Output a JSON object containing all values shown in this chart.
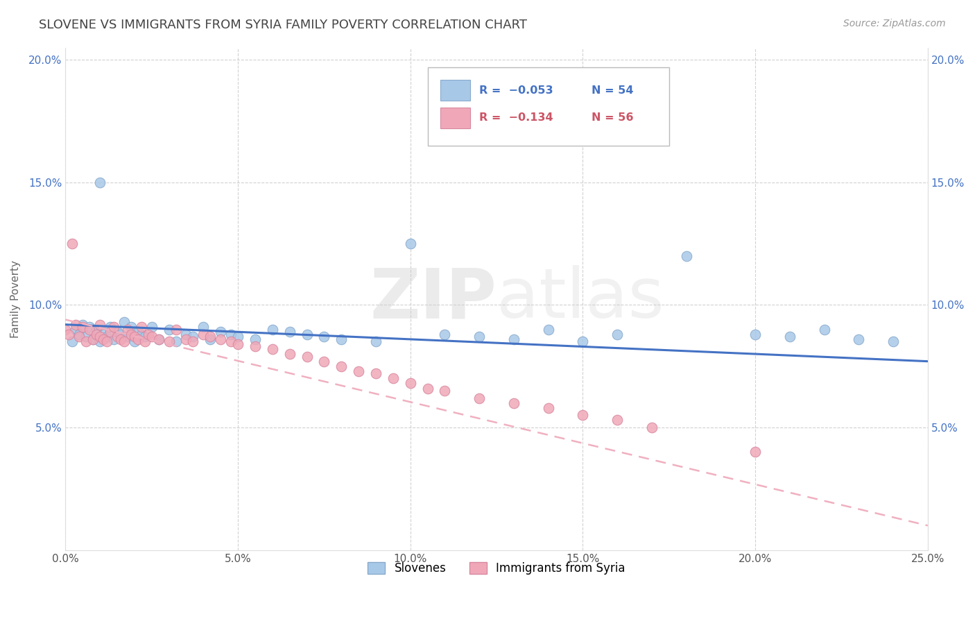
{
  "title": "SLOVENE VS IMMIGRANTS FROM SYRIA FAMILY POVERTY CORRELATION CHART",
  "source": "Source: ZipAtlas.com",
  "ylabel": "Family Poverty",
  "xlim": [
    0.0,
    0.25
  ],
  "ylim": [
    0.0,
    0.205
  ],
  "xtick_labels": [
    "0.0%",
    "5.0%",
    "10.0%",
    "15.0%",
    "20.0%",
    "25.0%"
  ],
  "xtick_vals": [
    0.0,
    0.05,
    0.1,
    0.15,
    0.2,
    0.25
  ],
  "ytick_labels": [
    "5.0%",
    "10.0%",
    "15.0%",
    "20.0%"
  ],
  "ytick_vals": [
    0.05,
    0.1,
    0.15,
    0.2
  ],
  "color_slovene": "#a8c8e8",
  "color_syria": "#f0a8b8",
  "color_line_slovene": "#4472c4",
  "color_line_syria": "#f0b0c0",
  "slovene_x": [
    0.002,
    0.003,
    0.004,
    0.005,
    0.006,
    0.007,
    0.008,
    0.009,
    0.01,
    0.01,
    0.011,
    0.012,
    0.013,
    0.014,
    0.015,
    0.016,
    0.017,
    0.018,
    0.019,
    0.02,
    0.021,
    0.022,
    0.023,
    0.025,
    0.027,
    0.03,
    0.032,
    0.035,
    0.037,
    0.04,
    0.042,
    0.045,
    0.048,
    0.05,
    0.055,
    0.06,
    0.065,
    0.07,
    0.075,
    0.08,
    0.09,
    0.1,
    0.11,
    0.12,
    0.13,
    0.14,
    0.15,
    0.16,
    0.18,
    0.2,
    0.21,
    0.22,
    0.23,
    0.24
  ],
  "slovene_y": [
    0.085,
    0.09,
    0.088,
    0.092,
    0.087,
    0.091,
    0.086,
    0.09,
    0.085,
    0.15,
    0.088,
    0.087,
    0.091,
    0.086,
    0.089,
    0.088,
    0.093,
    0.087,
    0.091,
    0.085,
    0.089,
    0.088,
    0.087,
    0.091,
    0.086,
    0.09,
    0.085,
    0.088,
    0.087,
    0.091,
    0.086,
    0.089,
    0.088,
    0.087,
    0.086,
    0.09,
    0.089,
    0.088,
    0.087,
    0.086,
    0.085,
    0.125,
    0.088,
    0.087,
    0.086,
    0.09,
    0.085,
    0.088,
    0.12,
    0.088,
    0.087,
    0.09,
    0.086,
    0.085
  ],
  "syria_x": [
    0.0,
    0.001,
    0.002,
    0.003,
    0.004,
    0.005,
    0.006,
    0.007,
    0.008,
    0.009,
    0.01,
    0.01,
    0.011,
    0.012,
    0.013,
    0.014,
    0.015,
    0.016,
    0.017,
    0.018,
    0.019,
    0.02,
    0.021,
    0.022,
    0.023,
    0.024,
    0.025,
    0.027,
    0.03,
    0.032,
    0.035,
    0.037,
    0.04,
    0.042,
    0.045,
    0.048,
    0.05,
    0.055,
    0.06,
    0.065,
    0.07,
    0.075,
    0.08,
    0.085,
    0.09,
    0.095,
    0.1,
    0.105,
    0.11,
    0.12,
    0.13,
    0.14,
    0.15,
    0.16,
    0.17,
    0.2
  ],
  "syria_y": [
    0.09,
    0.088,
    0.125,
    0.092,
    0.087,
    0.091,
    0.085,
    0.09,
    0.086,
    0.088,
    0.092,
    0.087,
    0.086,
    0.085,
    0.089,
    0.091,
    0.087,
    0.086,
    0.085,
    0.09,
    0.088,
    0.087,
    0.086,
    0.091,
    0.085,
    0.088,
    0.087,
    0.086,
    0.085,
    0.09,
    0.086,
    0.085,
    0.088,
    0.087,
    0.086,
    0.085,
    0.084,
    0.083,
    0.082,
    0.08,
    0.079,
    0.077,
    0.075,
    0.073,
    0.072,
    0.07,
    0.068,
    0.066,
    0.065,
    0.062,
    0.06,
    0.058,
    0.055,
    0.053,
    0.05,
    0.04
  ],
  "slov_line_x0": 0.0,
  "slov_line_x1": 0.25,
  "slov_line_y0": 0.092,
  "slov_line_y1": 0.077,
  "syria_line_x0": 0.0,
  "syria_line_x1": 0.25,
  "syria_line_y0": 0.094,
  "syria_line_y1": 0.01
}
